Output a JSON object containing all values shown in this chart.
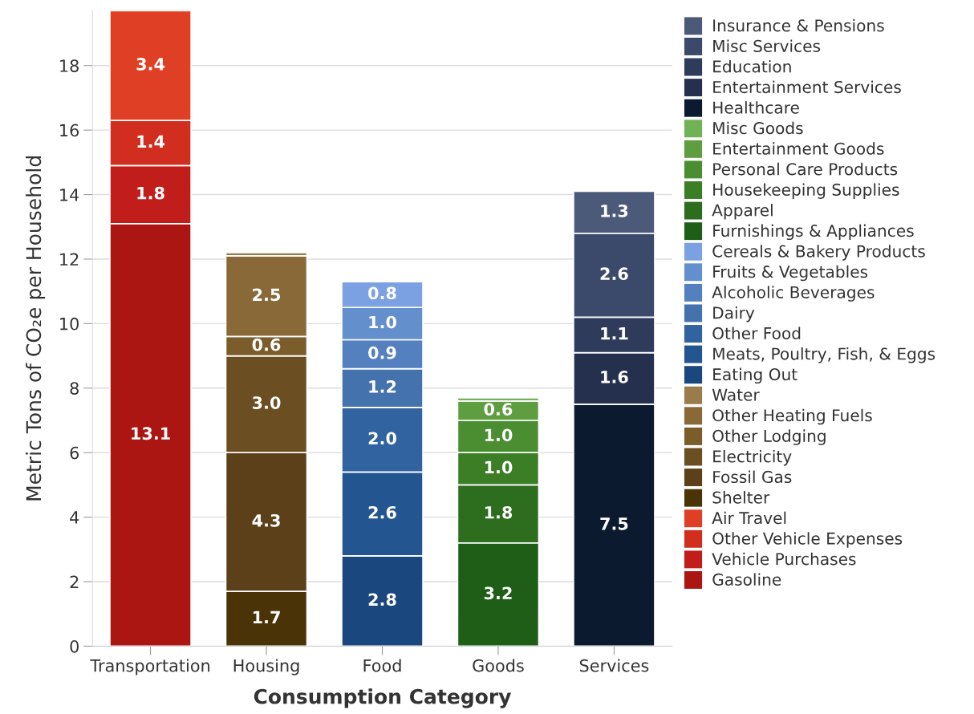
{
  "chart_data": {
    "type": "bar",
    "stacked": true,
    "xlabel": "Consumption Category",
    "ylabel": "Metric Tons of CO₂e per Household",
    "categories": [
      "Transportation",
      "Housing",
      "Food",
      "Goods",
      "Services"
    ],
    "ylim": [
      0,
      19.7
    ],
    "yticks": [
      0,
      2,
      4,
      6,
      8,
      10,
      12,
      14,
      16,
      18
    ],
    "grid": "y",
    "legend": "right",
    "series": [
      {
        "name": "Gasoline",
        "color": "#ab1612",
        "values": [
          13.1,
          null,
          null,
          null,
          null
        ],
        "value_labels": [
          "13.1",
          null,
          null,
          null,
          null
        ]
      },
      {
        "name": "Vehicle Purchases",
        "color": "#c11e1b",
        "values": [
          1.8,
          null,
          null,
          null,
          null
        ],
        "value_labels": [
          "1.8",
          null,
          null,
          null,
          null
        ]
      },
      {
        "name": "Other Vehicle Expenses",
        "color": "#d22e1f",
        "values": [
          1.4,
          null,
          null,
          null,
          null
        ],
        "value_labels": [
          "1.4",
          null,
          null,
          null,
          null
        ]
      },
      {
        "name": "Air Travel",
        "color": "#df3f25",
        "values": [
          3.4,
          null,
          null,
          null,
          null
        ],
        "value_labels": [
          "3.4",
          null,
          null,
          null,
          null
        ]
      },
      {
        "name": "Shelter",
        "color": "#4b3308",
        "values": [
          null,
          1.7,
          null,
          null,
          null
        ],
        "value_labels": [
          null,
          "1.7",
          null,
          null,
          null
        ]
      },
      {
        "name": "Fossil Gas",
        "color": "#5b4019",
        "values": [
          null,
          4.3,
          null,
          null,
          null
        ],
        "value_labels": [
          null,
          "4.3",
          null,
          null,
          null
        ]
      },
      {
        "name": "Electricity",
        "color": "#6b4e21",
        "values": [
          null,
          3.0,
          null,
          null,
          null
        ],
        "value_labels": [
          null,
          "3.0",
          null,
          null,
          null
        ]
      },
      {
        "name": "Other Lodging",
        "color": "#7b5c2b",
        "values": [
          null,
          0.6,
          null,
          null,
          null
        ],
        "value_labels": [
          null,
          "0.6",
          null,
          null,
          null
        ]
      },
      {
        "name": "Other Heating Fuels",
        "color": "#896938",
        "values": [
          null,
          2.5,
          null,
          null,
          null
        ],
        "value_labels": [
          null,
          "2.5",
          null,
          null,
          null
        ]
      },
      {
        "name": "Water",
        "color": "#9a7b4b",
        "values": [
          null,
          0.1,
          null,
          null,
          null
        ],
        "value_labels": [
          null,
          null,
          null,
          null,
          null
        ]
      },
      {
        "name": "Eating Out",
        "color": "#1a477e",
        "values": [
          null,
          null,
          2.8,
          null,
          null
        ],
        "value_labels": [
          null,
          null,
          "2.8",
          null,
          null
        ]
      },
      {
        "name": "Meats, Poultry, Fish, & Eggs",
        "color": "#235690",
        "values": [
          null,
          null,
          2.6,
          null,
          null
        ],
        "value_labels": [
          null,
          null,
          "2.6",
          null,
          null
        ]
      },
      {
        "name": "Other Food",
        "color": "#30639f",
        "values": [
          null,
          null,
          2.0,
          null,
          null
        ],
        "value_labels": [
          null,
          null,
          "2.0",
          null,
          null
        ]
      },
      {
        "name": "Dairy",
        "color": "#4472ad",
        "values": [
          null,
          null,
          1.2,
          null,
          null
        ],
        "value_labels": [
          null,
          null,
          "1.2",
          null,
          null
        ]
      },
      {
        "name": "Alcoholic Beverages",
        "color": "#5480bf",
        "values": [
          null,
          null,
          0.9,
          null,
          null
        ],
        "value_labels": [
          null,
          null,
          "0.9",
          null,
          null
        ]
      },
      {
        "name": "Fruits & Vegetables",
        "color": "#648fcd",
        "values": [
          null,
          null,
          1.0,
          null,
          null
        ],
        "value_labels": [
          null,
          null,
          "1.0",
          null,
          null
        ]
      },
      {
        "name": "Cereals & Bakery Products",
        "color": "#7ba1e2",
        "values": [
          null,
          null,
          0.8,
          null,
          null
        ],
        "value_labels": [
          null,
          null,
          "0.8",
          null,
          null
        ]
      },
      {
        "name": "Furnishings & Appliances",
        "color": "#1e5e16",
        "values": [
          null,
          null,
          null,
          3.2,
          null
        ],
        "value_labels": [
          null,
          null,
          null,
          "3.2",
          null
        ]
      },
      {
        "name": "Apparel",
        "color": "#2d6e1e",
        "values": [
          null,
          null,
          null,
          1.8,
          null
        ],
        "value_labels": [
          null,
          null,
          null,
          "1.8",
          null
        ]
      },
      {
        "name": "Housekeeping Supplies",
        "color": "#3b7e26",
        "values": [
          null,
          null,
          null,
          1.0,
          null
        ],
        "value_labels": [
          null,
          null,
          null,
          "1.0",
          null
        ]
      },
      {
        "name": "Personal Care Products",
        "color": "#4b8d31",
        "values": [
          null,
          null,
          null,
          1.0,
          null
        ],
        "value_labels": [
          null,
          null,
          null,
          "1.0",
          null
        ]
      },
      {
        "name": "Entertainment Goods",
        "color": "#5e9e40",
        "values": [
          null,
          null,
          null,
          0.6,
          null
        ],
        "value_labels": [
          null,
          null,
          null,
          "0.6",
          null
        ]
      },
      {
        "name": "Misc Goods",
        "color": "#72b256",
        "values": [
          null,
          null,
          null,
          0.1,
          null
        ],
        "value_labels": [
          null,
          null,
          null,
          null,
          null
        ]
      },
      {
        "name": "Healthcare",
        "color": "#0c1a30",
        "values": [
          null,
          null,
          null,
          null,
          7.5
        ],
        "value_labels": [
          null,
          null,
          null,
          null,
          "7.5"
        ]
      },
      {
        "name": "Entertainment Services",
        "color": "#24304e",
        "values": [
          null,
          null,
          null,
          null,
          1.6
        ],
        "value_labels": [
          null,
          null,
          null,
          null,
          "1.6"
        ]
      },
      {
        "name": "Education",
        "color": "#2e3b5a",
        "values": [
          null,
          null,
          null,
          null,
          1.1
        ],
        "value_labels": [
          null,
          null,
          null,
          null,
          "1.1"
        ]
      },
      {
        "name": "Misc Services",
        "color": "#3b4a6a",
        "values": [
          null,
          null,
          null,
          null,
          2.6
        ],
        "value_labels": [
          null,
          null,
          null,
          null,
          "2.6"
        ]
      },
      {
        "name": "Insurance & Pensions",
        "color": "#4c5a7a",
        "values": [
          null,
          null,
          null,
          null,
          1.3
        ],
        "value_labels": [
          null,
          null,
          null,
          null,
          "1.3"
        ]
      }
    ]
  }
}
